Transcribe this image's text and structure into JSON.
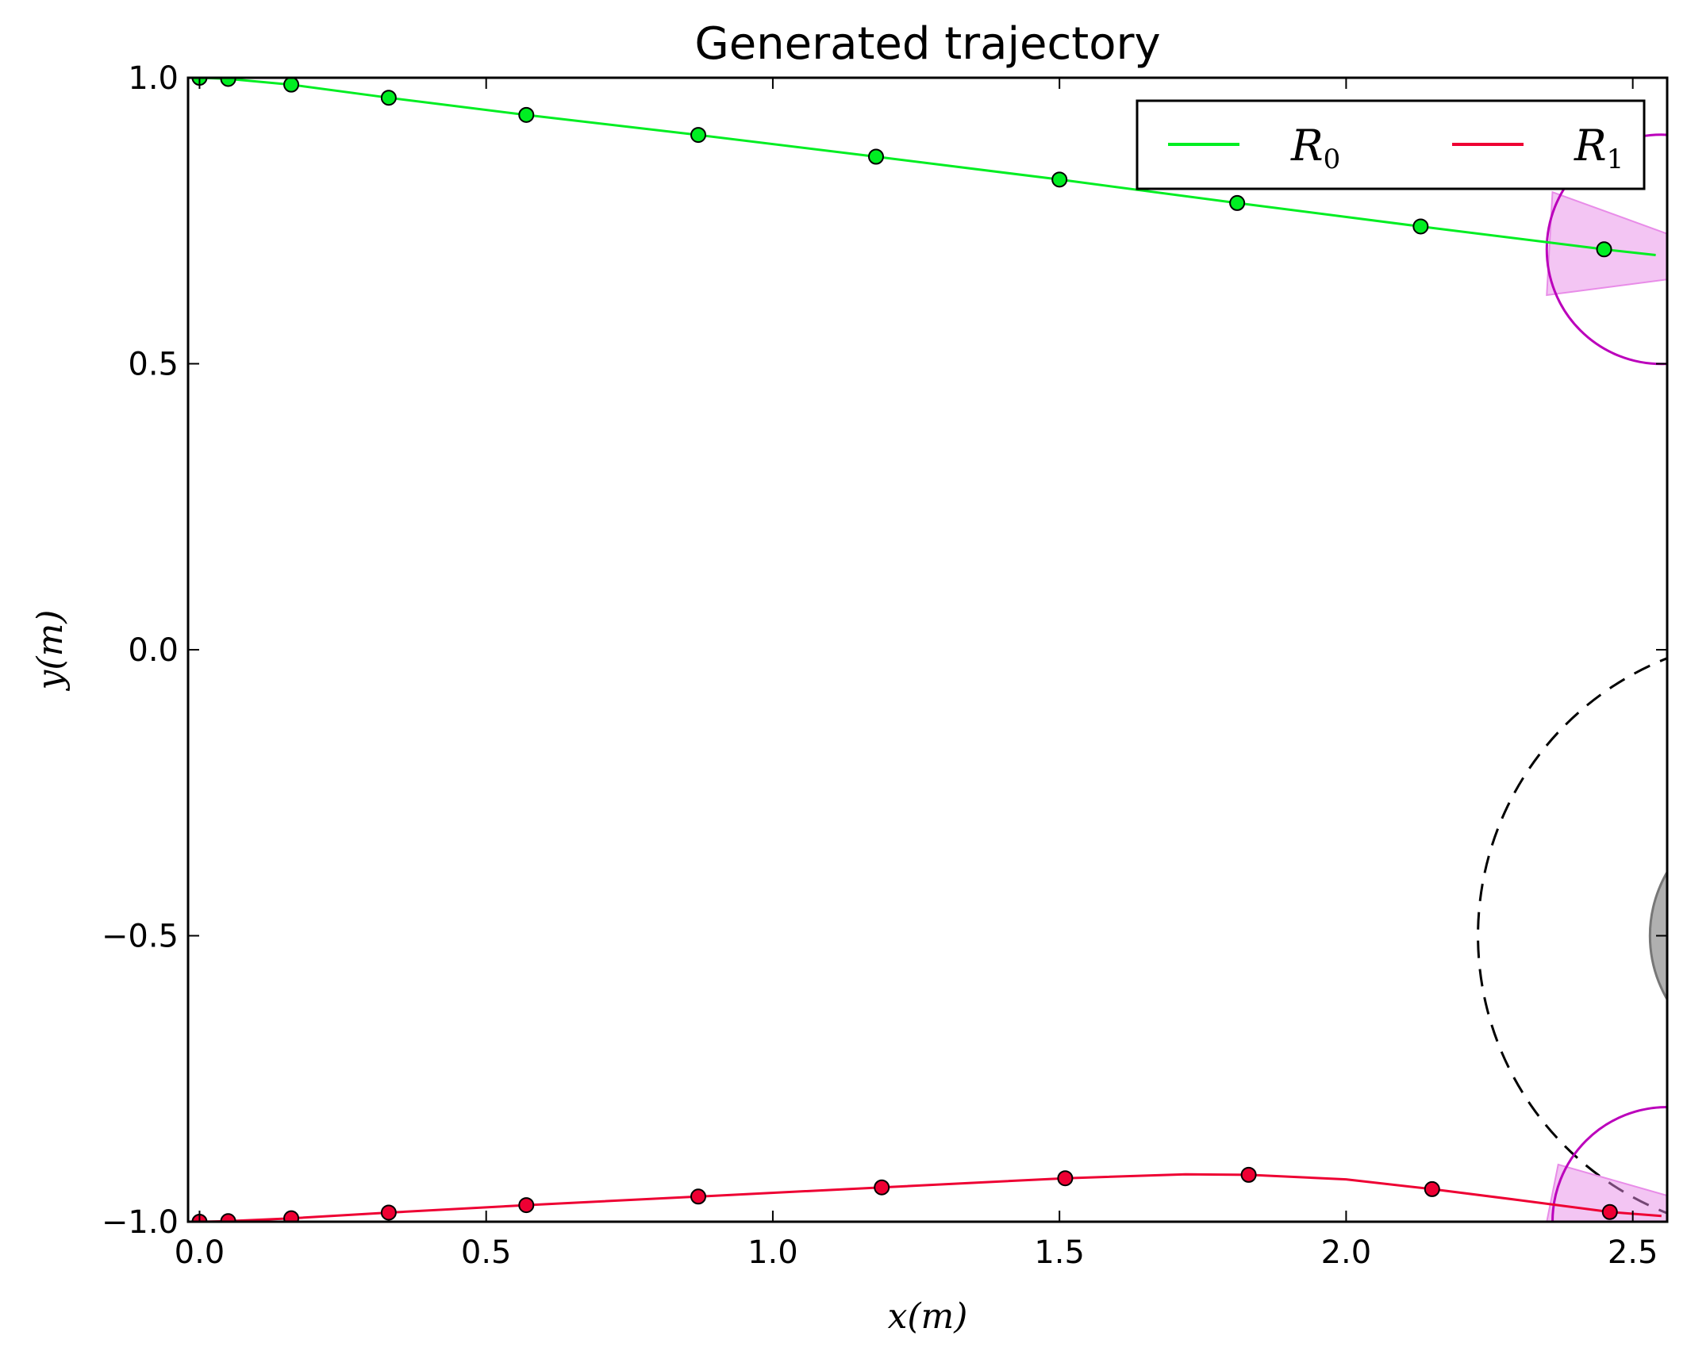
{
  "chart_data": {
    "type": "line",
    "title": "Generated trajectory",
    "xlabel": "x(m)",
    "ylabel": "y(m)",
    "xlim": [
      -0.02,
      2.56
    ],
    "ylim": [
      -1.0,
      1.0
    ],
    "x_ticks": [
      0.0,
      0.5,
      1.0,
      1.5,
      2.0,
      2.5
    ],
    "x_tick_labels": [
      "0.0",
      "0.5",
      "1.0",
      "1.5",
      "2.0",
      "2.5"
    ],
    "y_ticks": [
      1.0,
      0.5,
      0.0,
      -0.5,
      -1.0
    ],
    "y_tick_labels": [
      "1.0",
      "0.5",
      "0.0",
      "−0.5",
      "−1.0"
    ],
    "grid": false,
    "legend_position": "top-right",
    "series": [
      {
        "name": "R",
        "subscript": "0",
        "color": "#00ee22",
        "curve": [
          [
            0.0,
            1.0
          ],
          [
            0.05,
            0.998
          ],
          [
            0.16,
            0.988
          ],
          [
            0.33,
            0.965
          ],
          [
            0.57,
            0.935
          ],
          [
            0.87,
            0.9
          ],
          [
            1.18,
            0.862
          ],
          [
            1.5,
            0.822
          ],
          [
            1.81,
            0.781
          ],
          [
            2.13,
            0.74
          ],
          [
            2.45,
            0.7
          ],
          [
            2.54,
            0.69
          ]
        ],
        "markers": [
          [
            0.0,
            1.0
          ],
          [
            0.05,
            0.998
          ],
          [
            0.16,
            0.988
          ],
          [
            0.33,
            0.965
          ],
          [
            0.57,
            0.935
          ],
          [
            0.87,
            0.9
          ],
          [
            1.18,
            0.862
          ],
          [
            1.5,
            0.822
          ],
          [
            1.81,
            0.781
          ],
          [
            2.13,
            0.74
          ],
          [
            2.45,
            0.7
          ]
        ]
      },
      {
        "name": "R",
        "subscript": "1",
        "color": "#ee0033",
        "curve": [
          [
            0.0,
            -1.0
          ],
          [
            0.05,
            -0.999
          ],
          [
            0.16,
            -0.994
          ],
          [
            0.33,
            -0.984
          ],
          [
            0.57,
            -0.971
          ],
          [
            0.87,
            -0.956
          ],
          [
            1.19,
            -0.94
          ],
          [
            1.51,
            -0.924
          ],
          [
            1.72,
            -0.917
          ],
          [
            1.83,
            -0.918
          ],
          [
            2.0,
            -0.926
          ],
          [
            2.15,
            -0.943
          ],
          [
            2.3,
            -0.962
          ],
          [
            2.46,
            -0.983
          ],
          [
            2.55,
            -0.99
          ]
        ],
        "markers": [
          [
            0.0,
            -1.0
          ],
          [
            0.05,
            -0.999
          ],
          [
            0.16,
            -0.994
          ],
          [
            0.33,
            -0.984
          ],
          [
            0.57,
            -0.971
          ],
          [
            0.87,
            -0.956
          ],
          [
            1.19,
            -0.94
          ],
          [
            1.51,
            -0.924
          ],
          [
            1.83,
            -0.918
          ],
          [
            2.15,
            -0.943
          ],
          [
            2.46,
            -0.983
          ]
        ]
      }
    ],
    "robot_circles": [
      {
        "center": [
          2.55,
          0.7
        ],
        "radius": 0.2,
        "color": "#bb00bb",
        "fill": "#e88ce8",
        "cone": [
          [
            2.36,
            0.8
          ],
          [
            2.58,
            0.72
          ],
          [
            2.58,
            0.65
          ],
          [
            2.35,
            0.62
          ]
        ]
      },
      {
        "center": [
          2.56,
          -1.0
        ],
        "radius": 0.2,
        "color": "#bb00bb",
        "fill": "#e88ce8",
        "cone": [
          [
            2.37,
            -0.9
          ],
          [
            2.58,
            -0.96
          ],
          [
            2.58,
            -1.0
          ],
          [
            2.35,
            -1.0
          ]
        ]
      }
    ],
    "obstacle": {
      "center": [
        2.75,
        -0.5
      ],
      "radius": 0.22,
      "fill": "#b0b0b0",
      "stroke": "#777777"
    },
    "safety_region": {
      "center": [
        2.75,
        -0.5
      ],
      "radius": 0.52,
      "stroke": "#000000",
      "dashed": true
    }
  }
}
